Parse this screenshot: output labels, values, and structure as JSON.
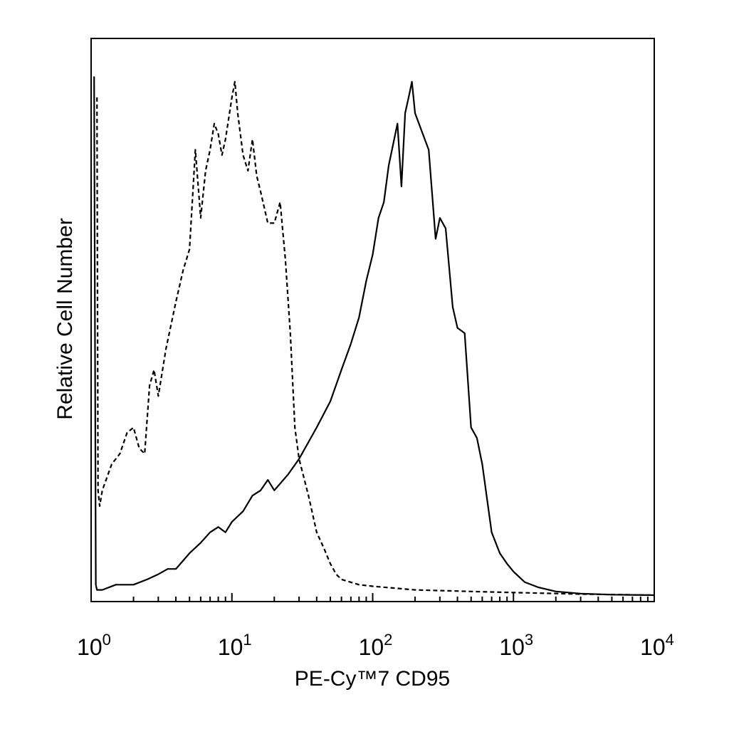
{
  "chart_data": {
    "type": "line",
    "title": "",
    "xlabel": "PE-Cy™7 CD95",
    "ylabel": "Relative Cell Number",
    "x_scale": "log",
    "xlim": [
      1,
      10000
    ],
    "ylim": [
      0,
      1
    ],
    "x_ticks": [
      {
        "base": "10",
        "exp": "0",
        "value": 1
      },
      {
        "base": "10",
        "exp": "1",
        "value": 10
      },
      {
        "base": "10",
        "exp": "2",
        "value": 100
      },
      {
        "base": "10",
        "exp": "3",
        "value": 1000
      },
      {
        "base": "10",
        "exp": "4",
        "value": 10000
      }
    ],
    "y_ticks_shown": false,
    "grid": false,
    "legend": "none",
    "series": [
      {
        "style": "dashed",
        "color": "#000000",
        "points": [
          [
            1.1,
            0.95
          ],
          [
            1.12,
            0.2
          ],
          [
            1.15,
            0.17
          ],
          [
            1.2,
            0.2
          ],
          [
            1.4,
            0.25
          ],
          [
            1.6,
            0.27
          ],
          [
            1.8,
            0.31
          ],
          [
            2.0,
            0.32
          ],
          [
            2.2,
            0.28
          ],
          [
            2.4,
            0.27
          ],
          [
            2.6,
            0.4
          ],
          [
            2.8,
            0.43
          ],
          [
            3.0,
            0.38
          ],
          [
            3.4,
            0.47
          ],
          [
            4.0,
            0.56
          ],
          [
            4.5,
            0.62
          ],
          [
            5.0,
            0.66
          ],
          [
            5.5,
            0.85
          ],
          [
            6.0,
            0.72
          ],
          [
            6.5,
            0.81
          ],
          [
            7.0,
            0.85
          ],
          [
            7.5,
            0.9
          ],
          [
            8.0,
            0.88
          ],
          [
            8.5,
            0.84
          ],
          [
            9.0,
            0.87
          ],
          [
            10.0,
            0.95
          ],
          [
            10.5,
            0.98
          ],
          [
            11.0,
            0.92
          ],
          [
            12.0,
            0.84
          ],
          [
            13.0,
            0.81
          ],
          [
            14.0,
            0.87
          ],
          [
            15.0,
            0.8
          ],
          [
            16.0,
            0.77
          ],
          [
            18.0,
            0.71
          ],
          [
            20.0,
            0.71
          ],
          [
            22.0,
            0.75
          ],
          [
            24.0,
            0.64
          ],
          [
            26.0,
            0.5
          ],
          [
            28.0,
            0.32
          ],
          [
            30.0,
            0.26
          ],
          [
            35.0,
            0.19
          ],
          [
            40.0,
            0.12
          ],
          [
            45.0,
            0.09
          ],
          [
            50.0,
            0.06
          ],
          [
            55.0,
            0.04
          ],
          [
            60.0,
            0.03
          ],
          [
            80.0,
            0.02
          ],
          [
            100.0,
            0.017
          ],
          [
            200.0,
            0.01
          ],
          [
            500.0,
            0.007
          ],
          [
            1000.0,
            0.005
          ],
          [
            3000.0,
            0.002
          ],
          [
            10000.0,
            0.0
          ]
        ]
      },
      {
        "style": "solid",
        "color": "#000000",
        "points": [
          [
            1.05,
            0.99
          ],
          [
            1.08,
            0.02
          ],
          [
            1.1,
            0.01
          ],
          [
            1.2,
            0.01
          ],
          [
            1.5,
            0.02
          ],
          [
            2.0,
            0.02
          ],
          [
            2.5,
            0.03
          ],
          [
            3.0,
            0.04
          ],
          [
            3.5,
            0.05
          ],
          [
            4.0,
            0.05
          ],
          [
            5.0,
            0.08
          ],
          [
            6.0,
            0.1
          ],
          [
            7.0,
            0.12
          ],
          [
            8.0,
            0.13
          ],
          [
            9.0,
            0.12
          ],
          [
            10.0,
            0.14
          ],
          [
            12.0,
            0.16
          ],
          [
            14.0,
            0.19
          ],
          [
            16.0,
            0.2
          ],
          [
            18.0,
            0.22
          ],
          [
            20.0,
            0.2
          ],
          [
            25.0,
            0.23
          ],
          [
            30.0,
            0.26
          ],
          [
            40.0,
            0.32
          ],
          [
            50.0,
            0.37
          ],
          [
            60.0,
            0.43
          ],
          [
            70.0,
            0.48
          ],
          [
            80.0,
            0.53
          ],
          [
            90.0,
            0.6
          ],
          [
            100.0,
            0.65
          ],
          [
            110.0,
            0.72
          ],
          [
            120.0,
            0.75
          ],
          [
            130.0,
            0.82
          ],
          [
            150.0,
            0.9
          ],
          [
            160.0,
            0.78
          ],
          [
            170.0,
            0.92
          ],
          [
            180.0,
            0.95
          ],
          [
            190.0,
            0.98
          ],
          [
            200.0,
            0.92
          ],
          [
            220.0,
            0.89
          ],
          [
            250.0,
            0.85
          ],
          [
            280.0,
            0.68
          ],
          [
            300.0,
            0.72
          ],
          [
            330.0,
            0.7
          ],
          [
            370.0,
            0.55
          ],
          [
            400.0,
            0.51
          ],
          [
            450.0,
            0.5
          ],
          [
            500.0,
            0.32
          ],
          [
            550.0,
            0.3
          ],
          [
            600.0,
            0.25
          ],
          [
            700.0,
            0.12
          ],
          [
            800.0,
            0.08
          ],
          [
            900.0,
            0.06
          ],
          [
            1000.0,
            0.045
          ],
          [
            1200.0,
            0.025
          ],
          [
            1500.0,
            0.015
          ],
          [
            2000.0,
            0.007
          ],
          [
            3000.0,
            0.003
          ],
          [
            5000.0,
            0.001
          ],
          [
            10000.0,
            0.0
          ]
        ]
      }
    ]
  }
}
